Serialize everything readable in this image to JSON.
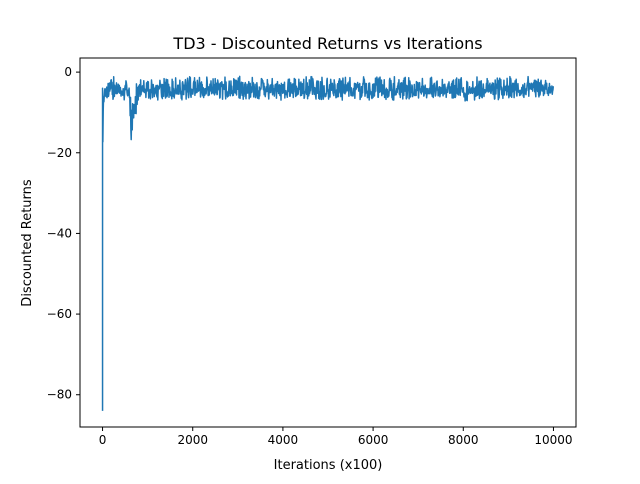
{
  "chart_data": {
    "type": "line",
    "title": "TD3 - Discounted Returns vs Iterations",
    "xlabel": "Iterations (x100)",
    "ylabel": "Discounted Returns",
    "xlim": [
      -500,
      10500
    ],
    "ylim": [
      -88,
      3.5
    ],
    "x_ticks": [
      0,
      2000,
      4000,
      6000,
      8000,
      10000
    ],
    "x_tick_labels": [
      "0",
      "2000",
      "4000",
      "6000",
      "8000",
      "10000"
    ],
    "y_ticks": [
      0,
      -20,
      -40,
      -60,
      -80
    ],
    "y_tick_labels": [
      "0",
      "−20",
      "−40",
      "−60",
      "−80"
    ],
    "grid": false,
    "legend": "none",
    "series": [
      {
        "color": "#1f77b4",
        "x": [
          0,
          5,
          10,
          15,
          20,
          30,
          40,
          60,
          80,
          100,
          150,
          200,
          250,
          300,
          350,
          400,
          450,
          500,
          550,
          600,
          620,
          640,
          660,
          680,
          700,
          720,
          740,
          760,
          780,
          800,
          850,
          900,
          1000,
          1500,
          2000,
          2500,
          3000,
          3500,
          4000,
          4500,
          5000,
          5500,
          6000,
          6500,
          7000,
          7500,
          8000,
          8050,
          8080,
          8100,
          8150,
          8200,
          8500,
          9000,
          9500,
          10000
        ],
        "low": [
          -84,
          -70,
          -40,
          -20,
          -13,
          -12,
          -10,
          -9,
          -8,
          -8,
          -7,
          -7,
          -7,
          -7,
          -7,
          -7,
          -7,
          -7,
          -7,
          -8,
          -13,
          -20,
          -18,
          -14,
          -13,
          -15,
          -12,
          -11,
          -10,
          -9,
          -7,
          -7,
          -7,
          -7,
          -7,
          -7,
          -7,
          -7,
          -7,
          -7,
          -7,
          -7,
          -7,
          -7,
          -7,
          -7,
          -7,
          -8,
          -10,
          -7,
          -7,
          -7,
          -7,
          -7,
          -7,
          -6
        ],
        "high": [
          -4,
          -3.5,
          -3.5,
          -3.5,
          -3,
          -3,
          -3,
          -3,
          -2.5,
          -2,
          -1.5,
          -1,
          -1,
          -1,
          -1,
          -1,
          -1,
          -1,
          -1.5,
          -3,
          -4,
          -6,
          -5,
          -4,
          -3,
          -3,
          -3,
          -2,
          -2,
          -2,
          -1.5,
          -1.5,
          -1,
          -1,
          -1,
          -1,
          -1,
          -1,
          -1,
          -1,
          -1,
          -1,
          -1,
          -1,
          -1,
          -1,
          -1,
          -1,
          -2,
          -1,
          -1,
          -1,
          -1,
          -1,
          -1,
          -1.5
        ],
        "mean": [
          -80,
          -40,
          -15,
          -9,
          -7,
          -7,
          -6,
          -6,
          -5,
          -5,
          -4.5,
          -4.5,
          -4.5,
          -4.5,
          -4.5,
          -4.5,
          -4.5,
          -4.5,
          -4.5,
          -5.5,
          -8,
          -14,
          -12,
          -9,
          -8,
          -8,
          -7,
          -6,
          -5.5,
          -5,
          -4.5,
          -4.5,
          -4.5,
          -4.5,
          -4.5,
          -4.5,
          -4.5,
          -4.5,
          -4.5,
          -4.5,
          -4.5,
          -4.5,
          -4.5,
          -4.5,
          -4.5,
          -4.5,
          -4.5,
          -5,
          -6,
          -4.5,
          -4.5,
          -4.5,
          -4.5,
          -4.5,
          -4.5,
          -4.5
        ]
      }
    ]
  }
}
